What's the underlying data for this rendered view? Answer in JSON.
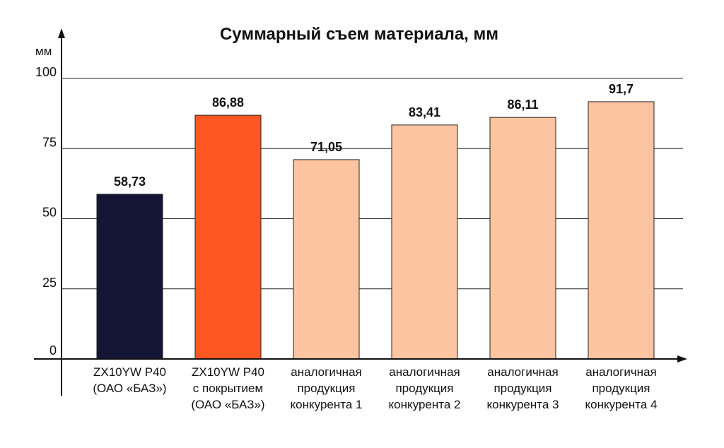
{
  "chart_data": {
    "type": "bar",
    "title": "Суммарный съем материала, мм",
    "ylabel": "мм",
    "xlabel": "",
    "ylim": [
      0,
      100
    ],
    "yticks": [
      0,
      25,
      50,
      75,
      100
    ],
    "grid": true,
    "categories": [
      [
        "ZX10YW P40",
        "(ОАО «БАЗ»)"
      ],
      [
        "ZX10YW P40",
        "с покрытием",
        "(ОАО «БАЗ»)"
      ],
      [
        "аналогичная",
        "продукция",
        "конкурента 1"
      ],
      [
        "аналогичная",
        "продукция",
        "конкурента 2"
      ],
      [
        "аналогичная",
        "продукция",
        "конкурента 3"
      ],
      [
        "аналогичная",
        "продукция",
        "конкурента 4"
      ]
    ],
    "values": [
      58.73,
      86.88,
      71.05,
      83.41,
      86.11,
      91.7
    ],
    "value_labels": [
      "58,73",
      "86,88",
      "71,05",
      "83,41",
      "86,11",
      "91,7"
    ],
    "colors": [
      "#141535",
      "#ff5722",
      "#fcc4a0",
      "#fcc4a0",
      "#fcc4a0",
      "#fcc4a0"
    ]
  }
}
